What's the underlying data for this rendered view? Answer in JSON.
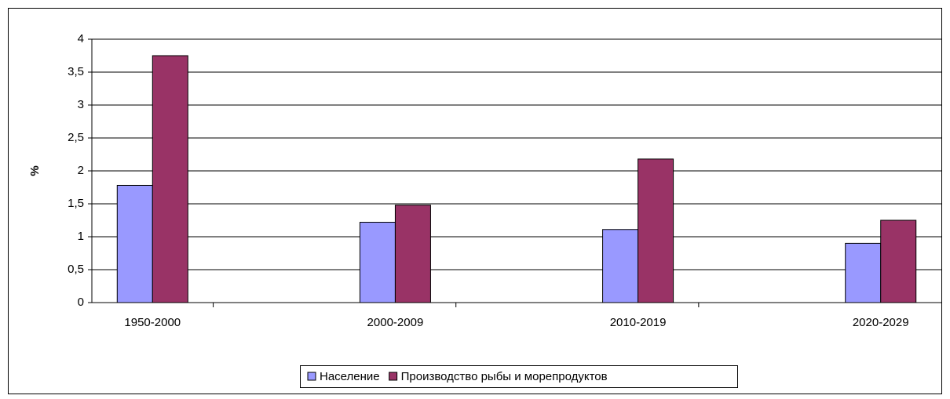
{
  "chart_data": {
    "type": "bar",
    "y_label": "%",
    "categories": [
      "1950-2000",
      null,
      "2000-2009",
      null,
      "2010-2019",
      null,
      "2020-2029"
    ],
    "series": [
      {
        "name": "Население",
        "color": "#9999ff",
        "values": [
          1.78,
          null,
          1.22,
          null,
          1.11,
          null,
          0.9
        ]
      },
      {
        "name": "Производство рыбы и морепродуктов",
        "color": "#993366",
        "values": [
          3.75,
          null,
          1.48,
          null,
          2.18,
          null,
          1.25
        ]
      }
    ],
    "ylim": [
      0,
      4
    ],
    "yticks": [
      0,
      {
        "value": 0.5,
        "label": "0,5"
      },
      1,
      {
        "value": 1.5,
        "label": "1,5"
      },
      2,
      {
        "value": 2.5,
        "label": "2,5"
      },
      3,
      {
        "value": 3.5,
        "label": "3,5"
      },
      4
    ],
    "grid": true,
    "legend": "bottom"
  }
}
